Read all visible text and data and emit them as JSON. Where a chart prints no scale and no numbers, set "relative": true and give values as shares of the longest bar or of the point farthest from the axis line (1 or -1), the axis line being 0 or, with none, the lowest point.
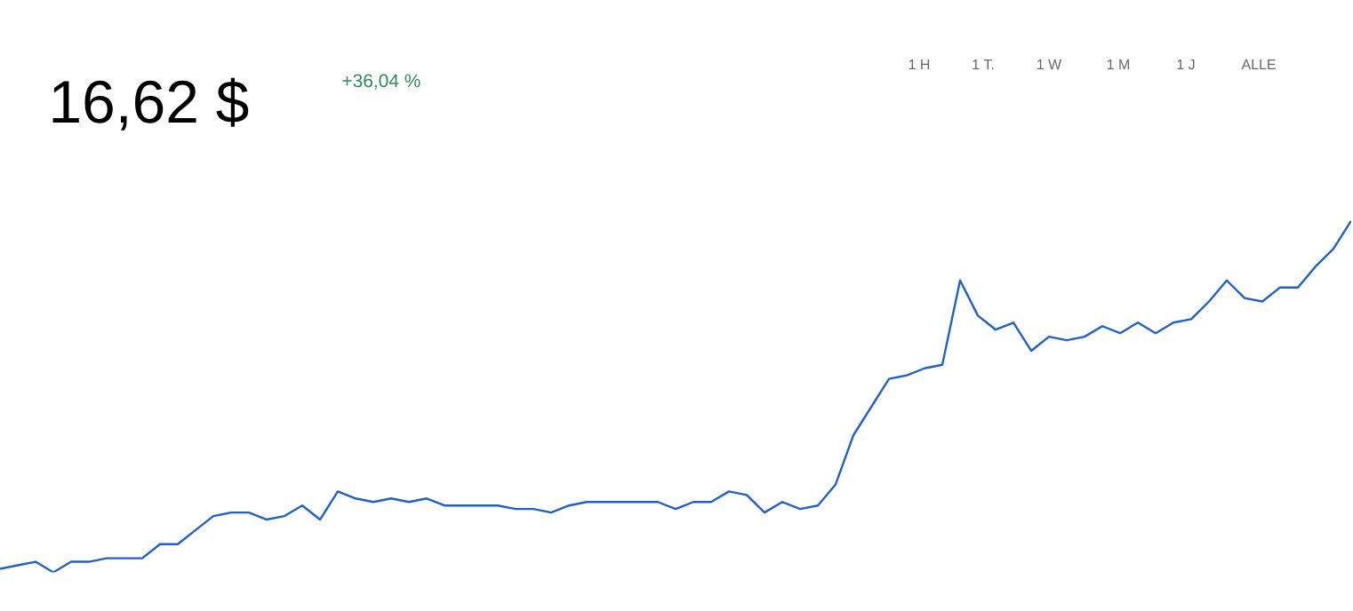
{
  "chart_data": {
    "type": "line",
    "title": "16,62 $",
    "subtitle": "+36,04 %",
    "annotations": [
      "1 H",
      "1 T.",
      "1 W",
      "1 M",
      "1 J",
      "ALLE"
    ],
    "relative": true,
    "categories": [
      null,
      null,
      null,
      null,
      null,
      null,
      null,
      null,
      null,
      null,
      null,
      null,
      null,
      null,
      null,
      null,
      null,
      null,
      null,
      null,
      null,
      null,
      null,
      null,
      null,
      null,
      null,
      null,
      null,
      null,
      null,
      null,
      null,
      null,
      null,
      null,
      null,
      null,
      null,
      null,
      null,
      null,
      null,
      null,
      null,
      null,
      null,
      null,
      null,
      null,
      null,
      null,
      null,
      null,
      null,
      null,
      null,
      null,
      null,
      null,
      null,
      null,
      null,
      null,
      null,
      null,
      null,
      null,
      null,
      null,
      null,
      null,
      null,
      null,
      null,
      null,
      null
    ],
    "series": [
      {
        "color": "#2060c8",
        "values": [
          0.01,
          0.02,
          0.03,
          0,
          0.03,
          0.03,
          0.04,
          0.04,
          0.04,
          0.08,
          0.08,
          0.12,
          0.16,
          0.17,
          0.17,
          0.15,
          0.16,
          0.19,
          0.15,
          0.23,
          0.21,
          0.2,
          0.21,
          0.2,
          0.21,
          0.19,
          0.19,
          0.19,
          0.19,
          0.18,
          0.18,
          0.17,
          0.19,
          0.2,
          0.2,
          0.2,
          0.2,
          0.2,
          0.18,
          0.2,
          0.2,
          0.23,
          0.22,
          0.17,
          0.2,
          0.18,
          0.19,
          0.25,
          0.39,
          0.47,
          0.55,
          0.56,
          0.58,
          0.59,
          0.83,
          0.73,
          0.69,
          0.71,
          0.63,
          0.67,
          0.66,
          0.67,
          0.7,
          0.68,
          0.71,
          0.68,
          0.71,
          0.72,
          0.77,
          0.83,
          0.78,
          0.77,
          0.81,
          0.81,
          0.87,
          0.92,
          1
        ]
      }
    ]
  }
}
